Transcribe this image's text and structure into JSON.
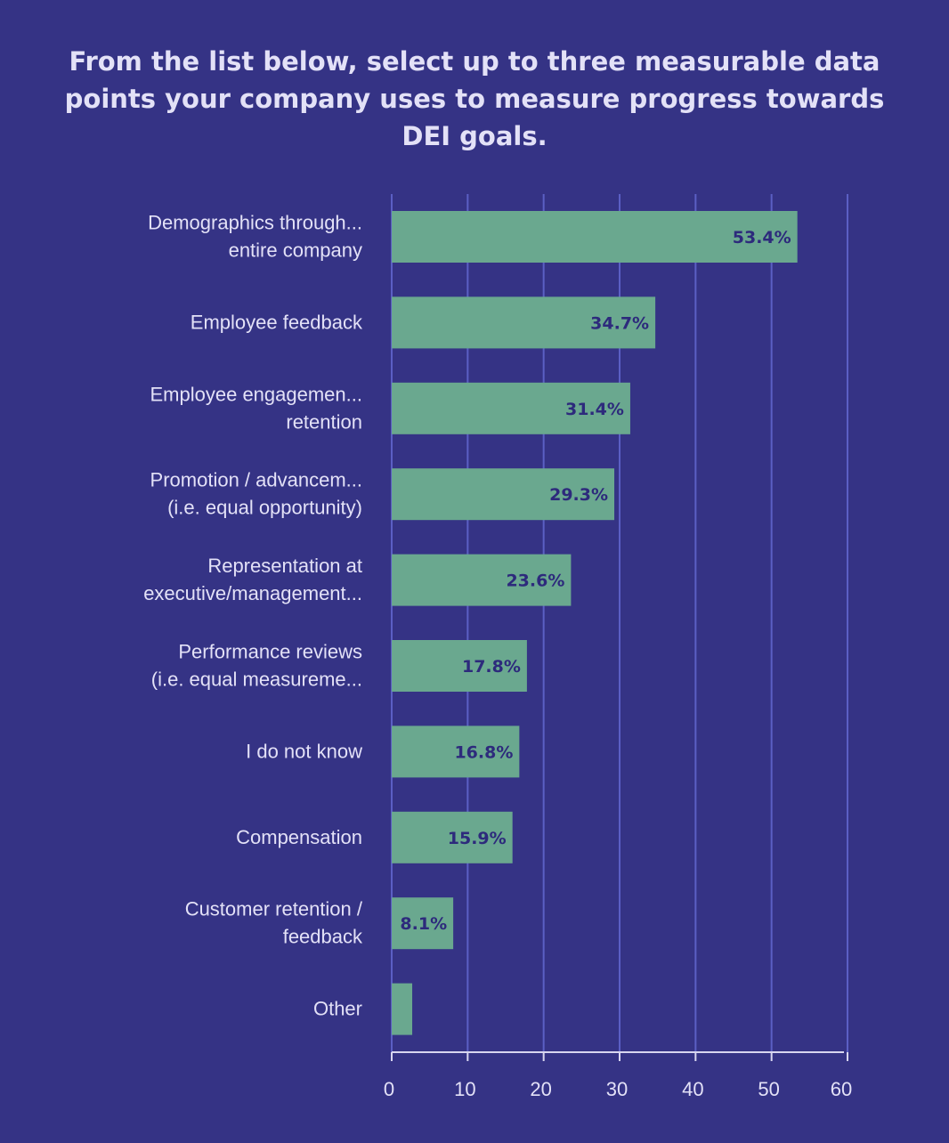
{
  "chart_data": {
    "type": "bar",
    "orientation": "horizontal",
    "title": "From the list below, select up to three measurable data\npoints your company uses to measure progress towards\nDEI goals.",
    "categories": [
      [
        "Demographics through...",
        "entire company"
      ],
      [
        "Employee feedback"
      ],
      [
        "Employee engagemen...",
        "retention"
      ],
      [
        "Promotion / advancem...",
        "(i.e. equal opportunity)"
      ],
      [
        "Representation at",
        "executive/management..."
      ],
      [
        "Performance reviews",
        "(i.e. equal measureme..."
      ],
      [
        "I do not know"
      ],
      [
        "Compensation"
      ],
      [
        "Customer retention /",
        "feedback"
      ],
      [
        "Other"
      ]
    ],
    "values": [
      53.4,
      34.7,
      31.4,
      29.3,
      23.6,
      17.8,
      16.8,
      15.9,
      8.1,
      2.7
    ],
    "data_labels": [
      "53.4%",
      "34.7%",
      "31.4%",
      "29.3%",
      "23.6%",
      "17.8%",
      "16.8%",
      "15.9%",
      "8.1%",
      ""
    ],
    "xlim": [
      0,
      60
    ],
    "x_ticks": [
      0,
      10,
      20,
      30,
      40,
      50,
      60
    ],
    "grid": true,
    "colors": {
      "background": "#353385",
      "bar": "#6aa88f",
      "grid": "#5b5fc4",
      "axis": "#d8d6f0",
      "text": "#e3e1f7",
      "value_label": "#2d2a7c"
    }
  }
}
